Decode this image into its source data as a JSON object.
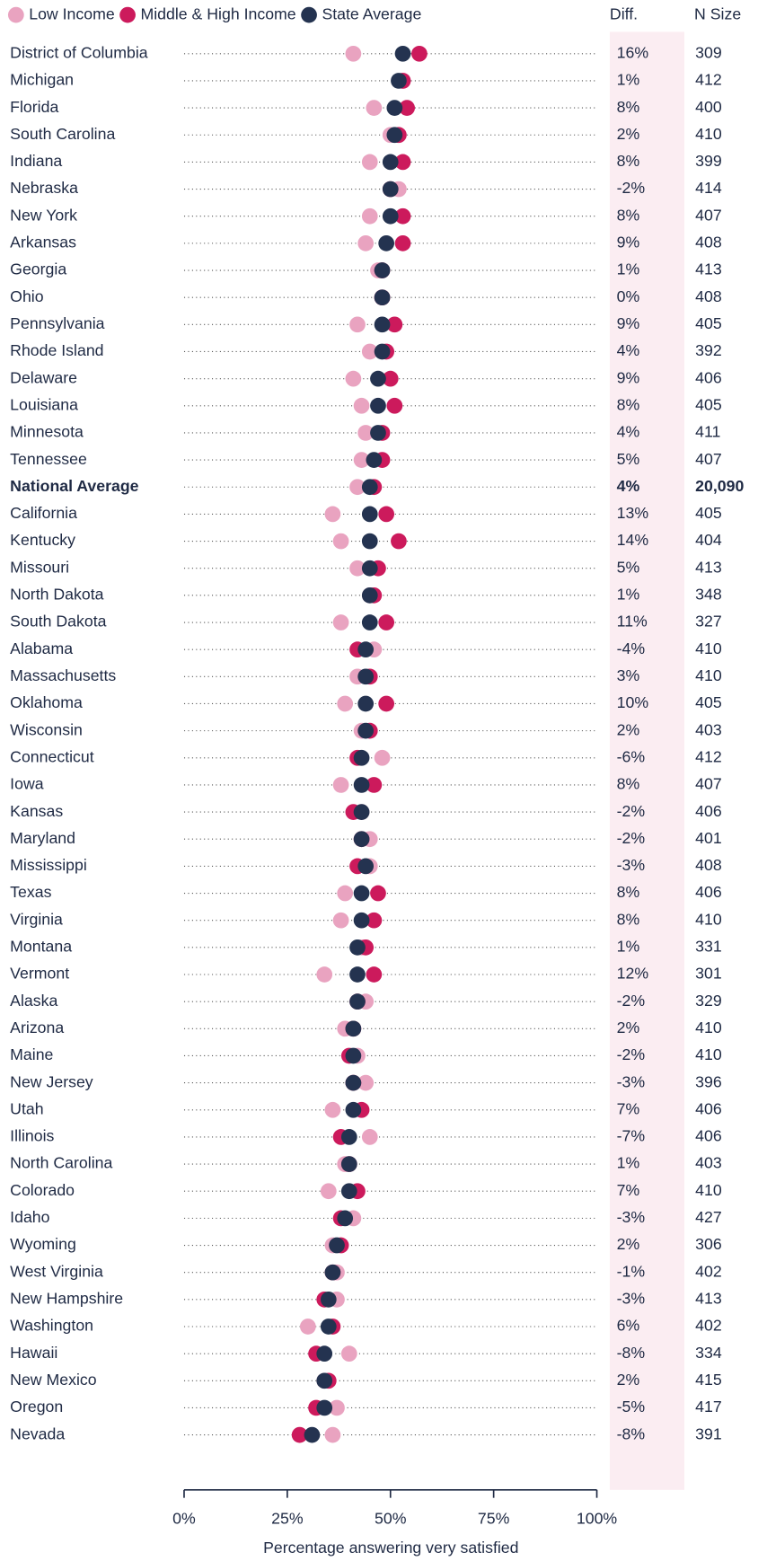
{
  "chart_data": {
    "type": "dot",
    "x_label": "Percentage answering very satisfied",
    "xlim": [
      0,
      100
    ],
    "xticks": [
      {
        "value": 0,
        "label": "0%"
      },
      {
        "value": 25,
        "label": "25%"
      },
      {
        "value": 50,
        "label": "50%"
      },
      {
        "value": 75,
        "label": "75%"
      },
      {
        "value": 100,
        "label": "100%"
      }
    ],
    "highlight_category": "National Average",
    "categories": [
      "District of Columbia",
      "Michigan",
      "Florida",
      "South Carolina",
      "Indiana",
      "Nebraska",
      "New York",
      "Arkansas",
      "Georgia",
      "Ohio",
      "Pennsylvania",
      "Rhode Island",
      "Delaware",
      "Louisiana",
      "Minnesota",
      "Tennessee",
      "National Average",
      "California",
      "Kentucky",
      "Missouri",
      "North Dakota",
      "South Dakota",
      "Alabama",
      "Massachusetts",
      "Oklahoma",
      "Wisconsin",
      "Connecticut",
      "Iowa",
      "Kansas",
      "Maryland",
      "Mississippi",
      "Texas",
      "Virginia",
      "Montana",
      "Vermont",
      "Alaska",
      "Arizona",
      "Maine",
      "New Jersey",
      "Utah",
      "Illinois",
      "North Carolina",
      "Colorado",
      "Idaho",
      "Wyoming",
      "West Virginia",
      "New Hampshire",
      "Washington",
      "Hawaii",
      "New Mexico",
      "Oregon",
      "Nevada"
    ],
    "series": [
      {
        "name": "Low Income",
        "color": "#e9a3c0",
        "values": [
          41,
          53,
          46,
          50,
          45,
          52,
          45,
          44,
          47,
          48,
          42,
          45,
          41,
          43,
          44,
          43,
          42,
          36,
          38,
          42,
          45,
          38,
          46,
          42,
          39,
          43,
          48,
          38,
          43,
          45,
          45,
          39,
          38,
          43,
          34,
          44,
          39,
          42,
          44,
          36,
          45,
          39,
          35,
          41,
          36,
          37,
          37,
          30,
          40,
          34,
          37,
          36
        ]
      },
      {
        "name": "Middle & High Income",
        "color": "#cc1a5c",
        "values": [
          57,
          53,
          54,
          52,
          53,
          50,
          53,
          53,
          48,
          48,
          51,
          49,
          50,
          51,
          48,
          48,
          46,
          49,
          52,
          47,
          46,
          49,
          42,
          45,
          49,
          45,
          42,
          46,
          41,
          43,
          42,
          47,
          46,
          44,
          46,
          42,
          41,
          40,
          41,
          43,
          38,
          40,
          42,
          38,
          38,
          36,
          34,
          36,
          32,
          35,
          32,
          28
        ]
      },
      {
        "name": "State Average",
        "color": "#243350",
        "values": [
          53,
          52,
          51,
          51,
          50,
          50,
          50,
          49,
          48,
          48,
          48,
          48,
          47,
          47,
          47,
          46,
          45,
          45,
          45,
          45,
          45,
          45,
          44,
          44,
          44,
          44,
          43,
          43,
          43,
          43,
          44,
          43,
          43,
          42,
          42,
          42,
          41,
          41,
          41,
          41,
          40,
          40,
          40,
          39,
          37,
          36,
          35,
          35,
          34,
          34,
          34,
          31
        ]
      }
    ],
    "diff_header": "Diff.",
    "diff": [
      "16%",
      "1%",
      "8%",
      "2%",
      "8%",
      "-2%",
      "8%",
      "9%",
      "1%",
      "0%",
      "9%",
      "4%",
      "9%",
      "8%",
      "4%",
      "5%",
      "4%",
      "13%",
      "14%",
      "5%",
      "1%",
      "11%",
      "-4%",
      "3%",
      "10%",
      "2%",
      "-6%",
      "8%",
      "-2%",
      "-2%",
      "-3%",
      "8%",
      "8%",
      "1%",
      "12%",
      "-2%",
      "2%",
      "-2%",
      "-3%",
      "7%",
      "-7%",
      "1%",
      "7%",
      "-3%",
      "2%",
      "-1%",
      "-3%",
      "6%",
      "-8%",
      "2%",
      "-5%",
      "-8%"
    ],
    "n_header": "N Size",
    "n": [
      "309",
      "412",
      "400",
      "410",
      "399",
      "414",
      "407",
      "408",
      "413",
      "408",
      "405",
      "392",
      "406",
      "405",
      "411",
      "407",
      "20,090",
      "405",
      "404",
      "413",
      "348",
      "327",
      "410",
      "410",
      "405",
      "403",
      "412",
      "407",
      "406",
      "401",
      "408",
      "406",
      "410",
      "331",
      "301",
      "329",
      "410",
      "410",
      "396",
      "406",
      "406",
      "403",
      "410",
      "427",
      "306",
      "402",
      "413",
      "402",
      "334",
      "415",
      "417",
      "391"
    ]
  }
}
